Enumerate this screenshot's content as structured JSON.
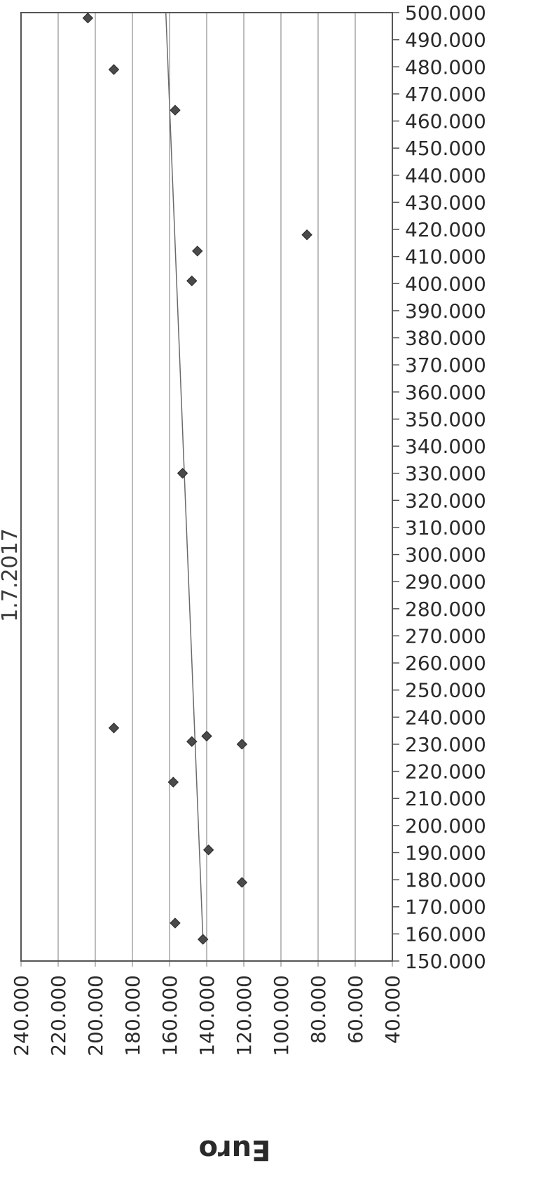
{
  "chart_data": {
    "type": "scatter",
    "title": "1.7.2017",
    "xlabel": "Euro",
    "ylabel": "",
    "xlim": [
      240000,
      40000
    ],
    "x_ticks": [
      "240.000",
      "220.000",
      "200.000",
      "180.000",
      "160.000",
      "140.000",
      "120.000",
      "100.000",
      "80.000",
      "60.000",
      "40.000"
    ],
    "ylim": [
      150000,
      500000
    ],
    "y_ticks": [
      "150.000",
      "160.000",
      "170.000",
      "180.000",
      "190.000",
      "200.000",
      "210.000",
      "220.000",
      "230.000",
      "240.000",
      "250.000",
      "260.000",
      "270.000",
      "280.000",
      "290.000",
      "300.000",
      "310.000",
      "320.000",
      "330.000",
      "340.000",
      "350.000",
      "360.000",
      "370.000",
      "380.000",
      "390.000",
      "400.000",
      "410.000",
      "420.000",
      "430.000",
      "440.000",
      "450.000",
      "460.000",
      "470.000",
      "480.000",
      "490.000",
      "500.000"
    ],
    "grid": true,
    "points": [
      {
        "x": 204000,
        "y": 498000
      },
      {
        "x": 190000,
        "y": 479000
      },
      {
        "x": 157000,
        "y": 464000
      },
      {
        "x": 86000,
        "y": 418000
      },
      {
        "x": 145000,
        "y": 412000
      },
      {
        "x": 148000,
        "y": 401000
      },
      {
        "x": 153000,
        "y": 330000
      },
      {
        "x": 190000,
        "y": 236000
      },
      {
        "x": 140000,
        "y": 233000
      },
      {
        "x": 148000,
        "y": 231000
      },
      {
        "x": 121000,
        "y": 230000
      },
      {
        "x": 158000,
        "y": 216000
      },
      {
        "x": 139000,
        "y": 191000
      },
      {
        "x": 121000,
        "y": 179000
      },
      {
        "x": 157000,
        "y": 164000
      },
      {
        "x": 142000,
        "y": 158000
      }
    ],
    "trendline": {
      "x1": 142000,
      "y1": 158000,
      "x2": 162000,
      "y2": 500000
    }
  },
  "colors": {
    "marker": "#4a4a4a",
    "grid": "#7a7a7a",
    "trend": "#6a6a6a",
    "text": "#2a2a2a"
  }
}
